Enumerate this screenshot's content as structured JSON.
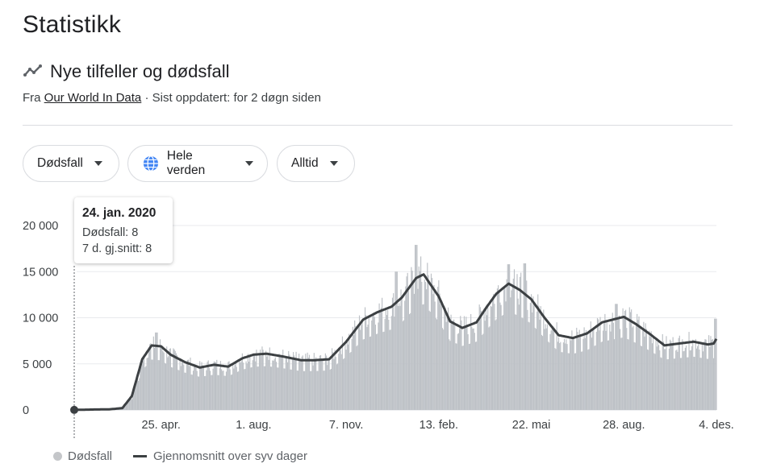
{
  "page": {
    "title": "Statistikk"
  },
  "section": {
    "title": "Nye tilfeller og dødsfall",
    "icon": "trend-icon",
    "source_prefix": "Fra",
    "source_link": "Our World In Data",
    "source_suffix": "· Sist oppdatert: for 2 døgn siden"
  },
  "filters": {
    "metric": "Dødsfall",
    "region": "Hele verden",
    "region_icon": "globe-icon",
    "period": "Alltid"
  },
  "tooltip": {
    "date": "24. jan. 2020",
    "line1": "Dødsfall: 8",
    "line2": "7 d. gj.snitt: 8"
  },
  "legend": {
    "bars": "Dødsfall",
    "line": "Gjennomsnitt over syv dager"
  },
  "colors": {
    "bars": "#bdc1c6",
    "line": "#3c4043",
    "grid": "#e8eaed"
  },
  "chart_data": {
    "type": "bar",
    "ylim": [
      0,
      20000
    ],
    "yticks": [
      0,
      5000,
      10000,
      15000,
      20000
    ],
    "ytick_labels": [
      "0",
      "5 000",
      "10 000",
      "15 000",
      "20 000"
    ],
    "xtick_labels": [
      "25. apr.",
      "1. aug.",
      "7. nov.",
      "13. feb.",
      "22. mai",
      "28. aug.",
      "4. des."
    ],
    "xtick_dates": [
      "2020-04-25",
      "2020-08-01",
      "2020-11-07",
      "2021-02-13",
      "2021-05-22",
      "2021-08-28",
      "2021-12-04"
    ],
    "x_range": [
      "2020-01-24",
      "2021-12-04"
    ],
    "series": [
      {
        "name": "Gjennomsnitt over syv dager",
        "kind": "line",
        "points": [
          [
            "2020-01-24",
            8
          ],
          [
            "2020-02-15",
            50
          ],
          [
            "2020-03-01",
            70
          ],
          [
            "2020-03-15",
            200
          ],
          [
            "2020-03-25",
            1500
          ],
          [
            "2020-04-05",
            5500
          ],
          [
            "2020-04-15",
            7000
          ],
          [
            "2020-04-25",
            6900
          ],
          [
            "2020-05-05",
            6000
          ],
          [
            "2020-05-20",
            5200
          ],
          [
            "2020-06-05",
            4600
          ],
          [
            "2020-06-20",
            4900
          ],
          [
            "2020-07-05",
            4700
          ],
          [
            "2020-07-20",
            5600
          ],
          [
            "2020-08-01",
            6000
          ],
          [
            "2020-08-15",
            6100
          ],
          [
            "2020-09-01",
            5800
          ],
          [
            "2020-09-20",
            5400
          ],
          [
            "2020-10-05",
            5400
          ],
          [
            "2020-10-20",
            5500
          ],
          [
            "2020-11-07",
            7400
          ],
          [
            "2020-11-25",
            9800
          ],
          [
            "2020-12-10",
            10600
          ],
          [
            "2020-12-25",
            11200
          ],
          [
            "2021-01-05",
            12200
          ],
          [
            "2021-01-20",
            14300
          ],
          [
            "2021-01-28",
            14700
          ],
          [
            "2021-02-13",
            12300
          ],
          [
            "2021-02-25",
            9600
          ],
          [
            "2021-03-10",
            8900
          ],
          [
            "2021-03-25",
            9500
          ],
          [
            "2021-04-05",
            11200
          ],
          [
            "2021-04-15",
            12600
          ],
          [
            "2021-04-28",
            13700
          ],
          [
            "2021-05-10",
            13000
          ],
          [
            "2021-05-22",
            12000
          ],
          [
            "2021-06-05",
            10000
          ],
          [
            "2021-06-20",
            8100
          ],
          [
            "2021-07-05",
            7800
          ],
          [
            "2021-07-20",
            8300
          ],
          [
            "2021-08-05",
            9500
          ],
          [
            "2021-08-28",
            10100
          ],
          [
            "2021-09-10",
            9300
          ],
          [
            "2021-09-25",
            8200
          ],
          [
            "2021-10-10",
            7000
          ],
          [
            "2021-10-25",
            7200
          ],
          [
            "2021-11-10",
            7400
          ],
          [
            "2021-11-25",
            7100
          ],
          [
            "2021-12-01",
            7200
          ],
          [
            "2021-12-04",
            7700
          ]
        ]
      }
    ],
    "daily_bars_estimate": {
      "name": "Dødsfall",
      "kind": "bar",
      "note_peaks": [
        [
          "2020-04-20",
          8400
        ],
        [
          "2020-12-30",
          15000
        ],
        [
          "2021-01-20",
          17900
        ],
        [
          "2021-04-28",
          15800
        ],
        [
          "2021-05-15",
          15900
        ],
        [
          "2021-08-20",
          11500
        ],
        [
          "2021-12-03",
          9900
        ]
      ]
    }
  }
}
